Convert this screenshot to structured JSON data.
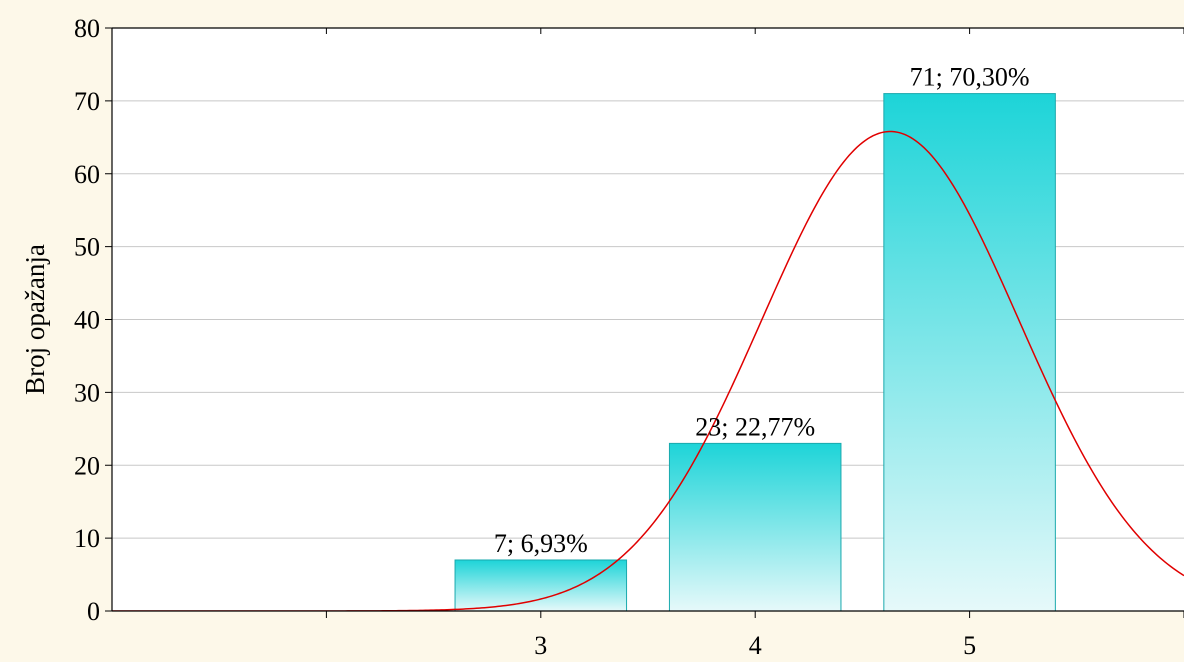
{
  "chart_data": {
    "type": "bar",
    "title": "",
    "xlabel": "",
    "ylabel": "Broj opažanja",
    "x_range": [
      1,
      6
    ],
    "x_ticks": [
      1,
      2,
      3,
      4,
      5,
      6
    ],
    "x_tick_labels": [
      "",
      "",
      "3",
      "4",
      "5",
      ""
    ],
    "ylim": [
      0,
      80
    ],
    "y_ticks": [
      0,
      10,
      20,
      30,
      40,
      50,
      60,
      70,
      80
    ],
    "grid": true,
    "bars": [
      {
        "category": "3",
        "value": 7,
        "label": "7; 6,93%"
      },
      {
        "category": "4",
        "value": 23,
        "label": "23; 22,77%"
      },
      {
        "category": "5",
        "value": 71,
        "label": "71; 70,30%"
      }
    ],
    "fitted_curve": {
      "type": "normal",
      "mean": 4.63,
      "sd": 0.6,
      "peak": 65.8
    },
    "colors": {
      "bar_top": "#1dd4d8",
      "bar_bottom": "#e6f9fa",
      "bar_stroke": "#1aa9ad",
      "curve": "#e00000",
      "grid": "#c8c8c8",
      "axis": "#000000",
      "background": "#fdf8e9",
      "plot_background": "#ffffff"
    }
  }
}
